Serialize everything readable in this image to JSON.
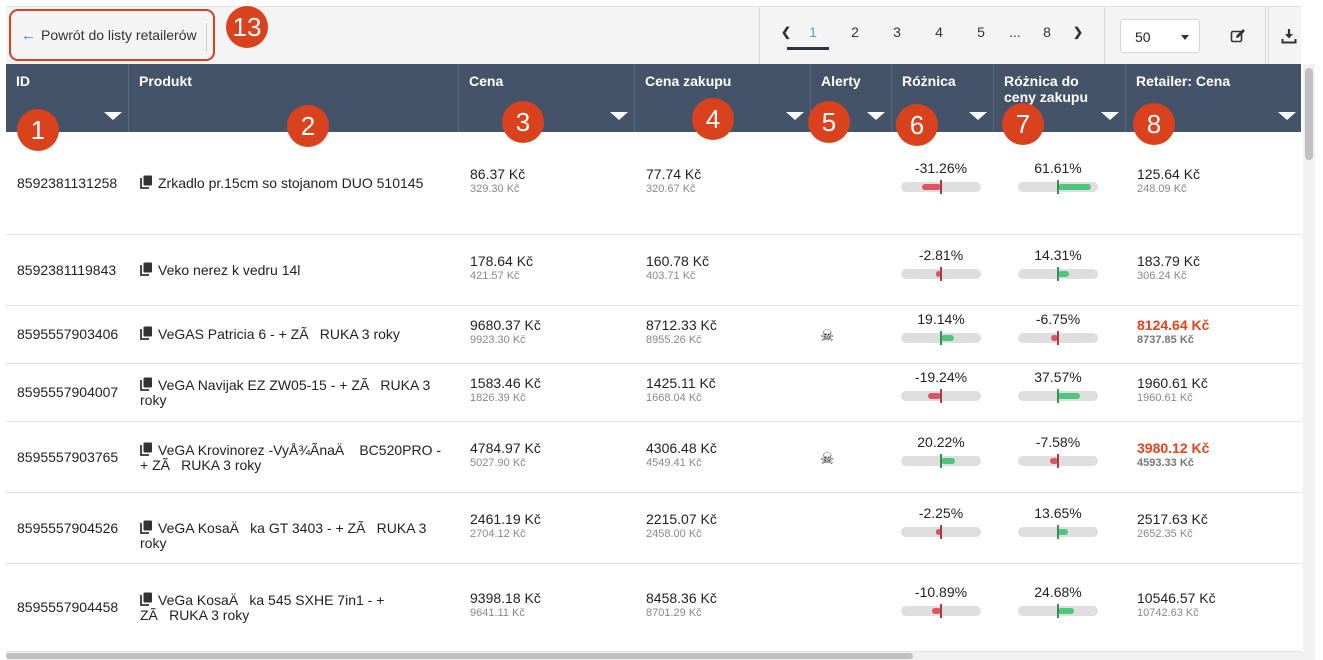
{
  "toolbar": {
    "back_label": "Powrót do listy retailerów",
    "pages": [
      "1",
      "2",
      "3",
      "4",
      "5",
      "...",
      "8"
    ],
    "active_page": "1",
    "per_page": "50"
  },
  "columns": [
    {
      "label": "ID"
    },
    {
      "label": "Produkt"
    },
    {
      "label": "Cena"
    },
    {
      "label": "Cena zakupu"
    },
    {
      "label": "Alerty"
    },
    {
      "label": "Różnica"
    },
    {
      "label": "Różnica do ceny zakupu"
    },
    {
      "label": "Retailer: Cena"
    }
  ],
  "rows": [
    {
      "id": "8592381131258",
      "product": "Zrkadlo pr.15cm so stojanom DUO 510145",
      "price": "86.37 Kč",
      "price_sub": "329.30 Kč",
      "purchase": "77.74 Kč",
      "purchase_sub": "320.67 Kč",
      "alert": "",
      "diff": "-31.26%",
      "diff_val": -31.26,
      "diff2": "61.61%",
      "diff2_val": 61.61,
      "retailer": "125.64 Kč",
      "retailer_sub": "248.09 Kč",
      "retailer_alert": false
    },
    {
      "id": "8592381119843",
      "product": "Veko nerez k vedru 14l",
      "price": "178.64 Kč",
      "price_sub": "421.57 Kč",
      "purchase": "160.78 Kč",
      "purchase_sub": "403.71 Kč",
      "alert": "",
      "diff": "-2.81%",
      "diff_val": -2.81,
      "diff2": "14.31%",
      "diff2_val": 14.31,
      "retailer": "183.79 Kč",
      "retailer_sub": "306.24 Kč",
      "retailer_alert": false
    },
    {
      "id": "8595557903406",
      "product": "VeGAS Patricia 6 - + ZÃRUKA 3 roky",
      "price": "9680.37 Kč",
      "price_sub": "9923.30 Kč",
      "purchase": "8712.33 Kč",
      "purchase_sub": "8955.26 Kč",
      "alert": "☠",
      "diff": "19.14%",
      "diff_val": 19.14,
      "diff2": "-6.75%",
      "diff2_val": -6.75,
      "retailer": "8124.64 Kč",
      "retailer_sub": "8737.85 Kč",
      "retailer_alert": true
    },
    {
      "id": "8595557904007",
      "product": "VeGA Navijak EZ ZW05-15 - + ZÃRUKA 3 roky",
      "price": "1583.46 Kč",
      "price_sub": "1826.39 Kč",
      "purchase": "1425.11 Kč",
      "purchase_sub": "1668.04 Kč",
      "alert": "",
      "diff": "-19.24%",
      "diff_val": -19.24,
      "diff2": "37.57%",
      "diff2_val": 37.57,
      "retailer": "1960.61 Kč",
      "retailer_sub": "1960.61 Kč",
      "retailer_alert": false
    },
    {
      "id": "8595557903765",
      "product": "VeGA Krovinorez -VyÅ¾ÃnaÄ BC520PRO - + ZÃRUKA 3 roky",
      "price": "4784.97 Kč",
      "price_sub": "5027.90 Kč",
      "purchase": "4306.48 Kč",
      "purchase_sub": "4549.41 Kč",
      "alert": "☠",
      "diff": "20.22%",
      "diff_val": 20.22,
      "diff2": "-7.58%",
      "diff2_val": -7.58,
      "retailer": "3980.12 Kč",
      "retailer_sub": "4593.33 Kč",
      "retailer_alert": true
    },
    {
      "id": "8595557904526",
      "product": "VeGA KosaÄka GT 3403 - + ZÃRUKA 3 roky",
      "price": "2461.19 Kč",
      "price_sub": "2704.12 Kč",
      "purchase": "2215.07 Kč",
      "purchase_sub": "2458.00 Kč",
      "alert": "",
      "diff": "-2.25%",
      "diff_val": -2.25,
      "diff2": "13.65%",
      "diff2_val": 13.65,
      "retailer": "2517.63 Kč",
      "retailer_sub": "2652.35 Kč",
      "retailer_alert": false
    },
    {
      "id": "8595557904458",
      "product": "VeGa KosaÄka 545 SXHE 7in1 - + ZÃRUKA 3 roky",
      "price": "9398.18 Kč",
      "price_sub": "9641.11 Kč",
      "purchase": "8458.36 Kč",
      "purchase_sub": "8701.29 Kč",
      "alert": "",
      "diff": "-10.89%",
      "diff_val": -10.89,
      "diff2": "24.68%",
      "diff2_val": 24.68,
      "retailer": "10546.57 Kč",
      "retailer_sub": "10742.63 Kč",
      "retailer_alert": false
    }
  ],
  "markers": [
    "1",
    "2",
    "3",
    "4",
    "5",
    "6",
    "7",
    "8",
    "13"
  ],
  "colors": {
    "header": "#455369",
    "marker": "#d9421c",
    "positive": "#4cc77c",
    "negative": "#dc5563",
    "alert_price": "#e8411c",
    "active_page": "#4aa3c9"
  },
  "icons": {
    "back": "arrow-left-icon",
    "prev": "chevron-left-icon",
    "next": "chevron-right-icon",
    "edit": "edit-icon",
    "download": "download-icon",
    "copy": "copy-icon",
    "alert": "skull-icon"
  }
}
